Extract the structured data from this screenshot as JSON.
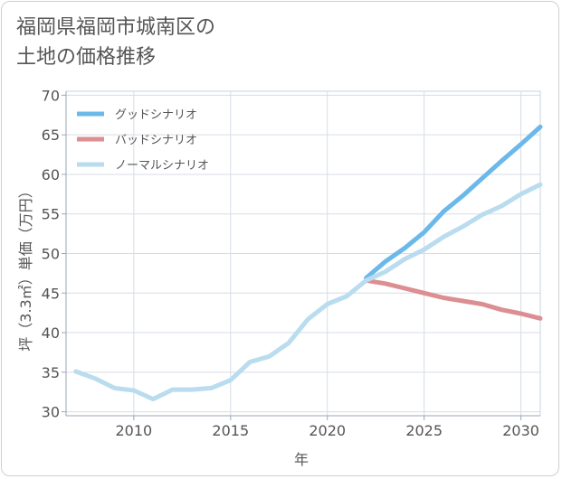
{
  "title_lines": [
    "福岡県福岡市城南区の",
    "土地の価格推移"
  ],
  "chart_data": {
    "type": "line",
    "xlabel": "年",
    "ylabel": "坪（3.3㎡）単価（万円）",
    "xlim": [
      2006.5,
      2031
    ],
    "ylim": [
      29.5,
      70.5
    ],
    "xticks": [
      2010,
      2015,
      2020,
      2025,
      2030
    ],
    "yticks": [
      30,
      35,
      40,
      45,
      50,
      55,
      60,
      65,
      70
    ],
    "grid": true,
    "legend_position": "top-left",
    "series": [
      {
        "name": "グッドシナリオ",
        "color": "#6bb8ea",
        "x": [
          2022,
          2023,
          2024,
          2025,
          2026,
          2027,
          2028,
          2029,
          2030,
          2031
        ],
        "y": [
          46.9,
          49.0,
          50.7,
          52.7,
          55.3,
          57.3,
          59.5,
          61.7,
          63.8,
          66.0
        ]
      },
      {
        "name": "バッドシナリオ",
        "color": "#dc8e92",
        "x": [
          2022,
          2023,
          2024,
          2025,
          2026,
          2027,
          2028,
          2029,
          2030,
          2031
        ],
        "y": [
          46.6,
          46.2,
          45.6,
          45.0,
          44.4,
          44.0,
          43.6,
          42.9,
          42.4,
          41.8
        ]
      },
      {
        "name": "ノーマルシナリオ",
        "color": "#b9dcef",
        "x": [
          2007,
          2008,
          2009,
          2010,
          2011,
          2012,
          2013,
          2014,
          2015,
          2016,
          2017,
          2018,
          2019,
          2020,
          2021,
          2022,
          2023,
          2024,
          2025,
          2026,
          2027,
          2028,
          2029,
          2030,
          2031
        ],
        "y": [
          35.1,
          34.2,
          33.0,
          32.7,
          31.6,
          32.8,
          32.8,
          33.0,
          34.0,
          36.3,
          37.0,
          38.7,
          41.7,
          43.6,
          44.6,
          46.6,
          47.7,
          49.3,
          50.5,
          52.1,
          53.4,
          54.9,
          56.0,
          57.5,
          58.7
        ]
      }
    ]
  }
}
